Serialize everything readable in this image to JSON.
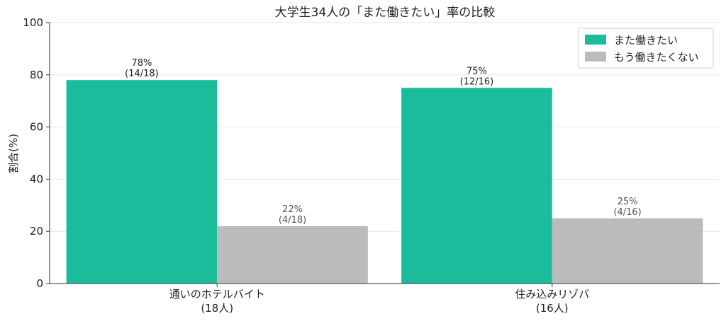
{
  "chart_data": {
    "type": "bar",
    "title": "大学生34人の「また働きたい」率の比較",
    "ylabel": "割合(%)",
    "xlabel": "",
    "ylim": [
      0,
      100
    ],
    "yticks": [
      0,
      20,
      40,
      60,
      80,
      100
    ],
    "grid": true,
    "legend_position": "top-right",
    "categories": [
      [
        "通いのホテルバイト",
        "(18人)"
      ],
      [
        "住み込みリゾバ",
        "(16人)"
      ]
    ],
    "series": [
      {
        "name": "また働きたい",
        "color": "#1abc9c",
        "values": [
          78,
          75
        ],
        "labels": [
          [
            "78%",
            "(14/18)"
          ],
          [
            "75%",
            "(12/16)"
          ]
        ]
      },
      {
        "name": "もう働きたくない",
        "color": "#bbbbbb",
        "values": [
          22,
          25
        ],
        "labels": [
          [
            "22%",
            "(4/18)"
          ],
          [
            "25%",
            "(4/16)"
          ]
        ]
      }
    ]
  }
}
